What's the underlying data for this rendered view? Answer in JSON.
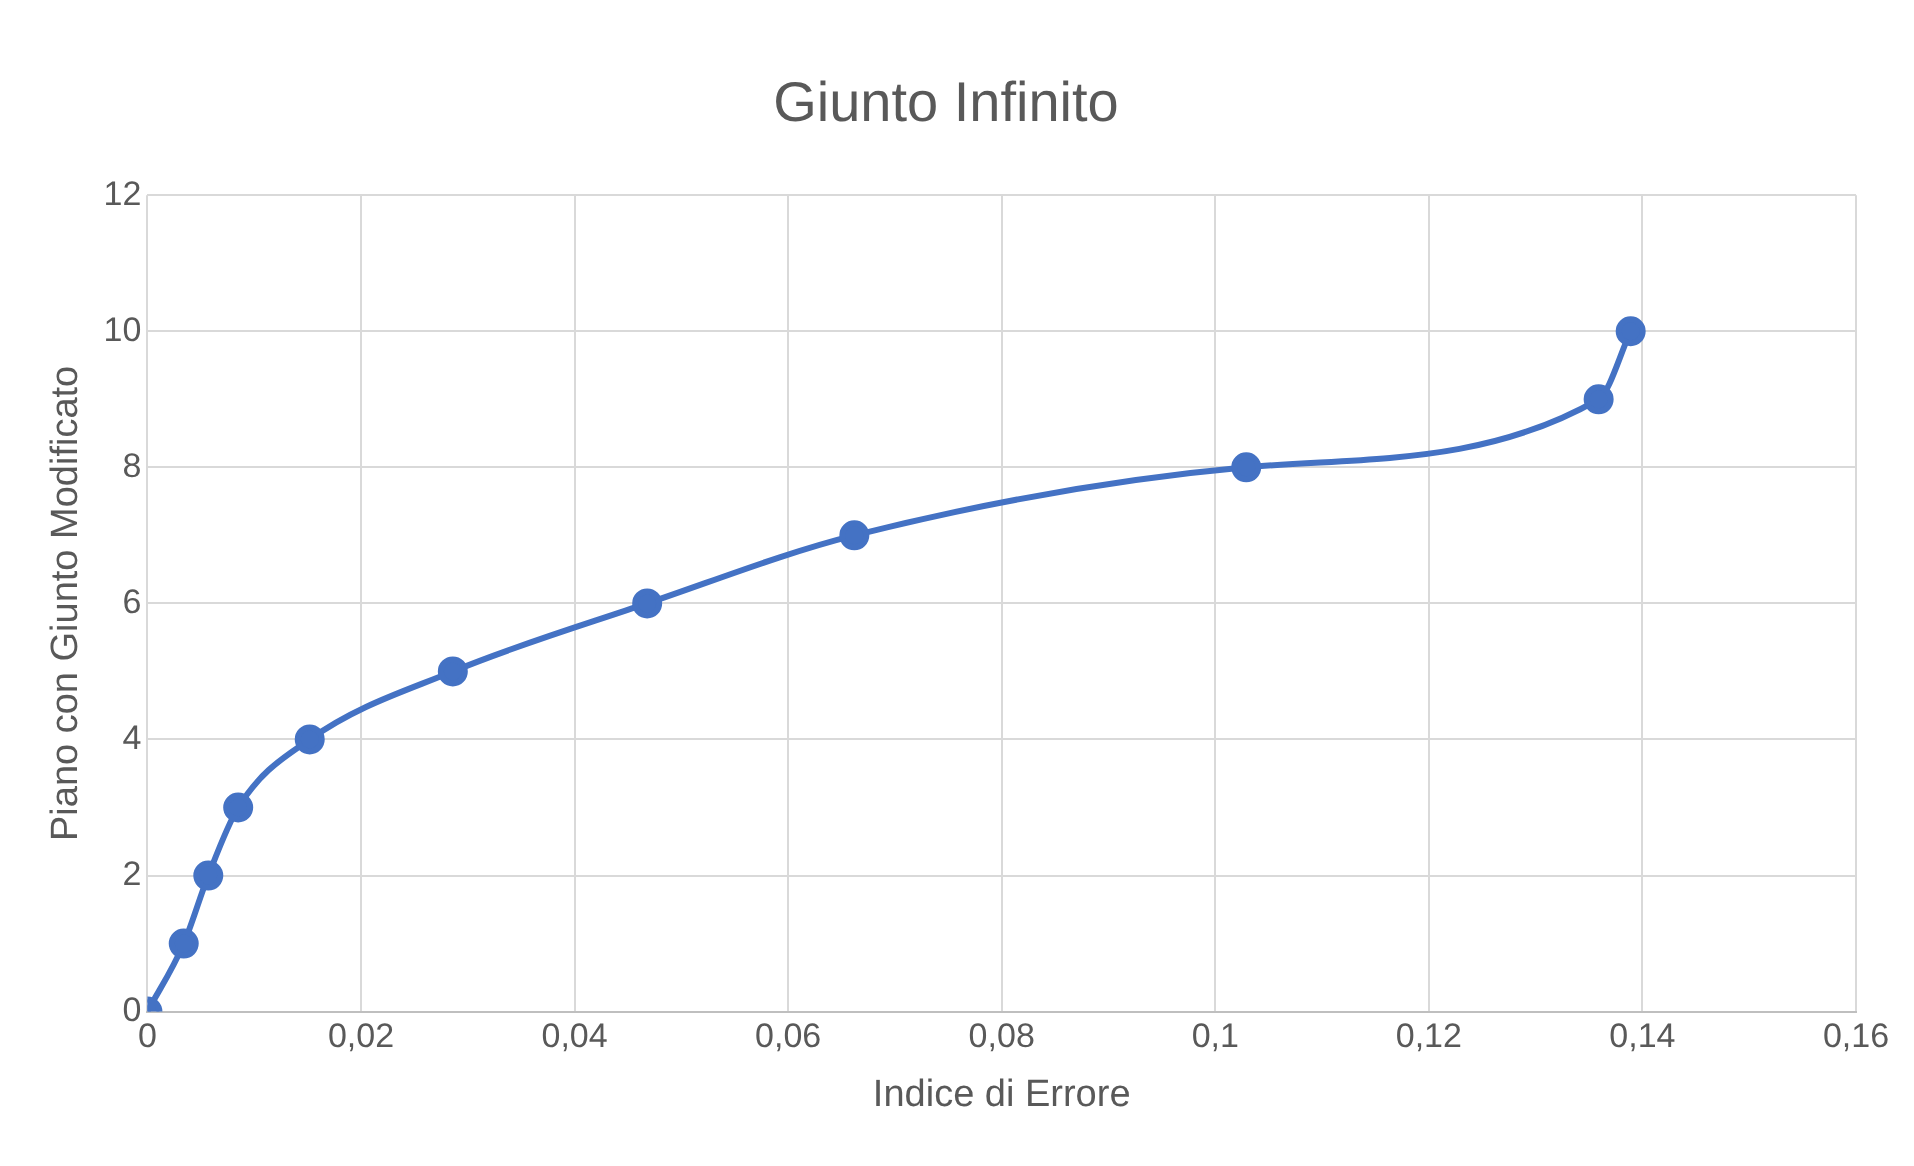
{
  "chart_data": {
    "type": "line",
    "title": "Giunto Infinito",
    "xlabel": "Indice di Errore",
    "ylabel": "Piano con Giunto Modificato",
    "x": [
      0,
      0.0034,
      0.0057,
      0.0085,
      0.0152,
      0.0286,
      0.0468,
      0.0662,
      0.1029,
      0.1359,
      0.1389
    ],
    "series": [
      {
        "color": "#4472c4",
        "values": [
          0,
          1,
          2,
          3,
          4,
          5,
          6,
          7,
          8,
          9,
          10
        ]
      }
    ],
    "xlim": [
      0,
      0.16
    ],
    "xticks": [
      0,
      {
        "value": 0.02,
        "label": "0,02"
      },
      {
        "value": 0.04,
        "label": "0,04"
      },
      {
        "value": 0.06,
        "label": "0,06"
      },
      {
        "value": 0.08,
        "label": "0,08"
      },
      {
        "value": 0.1,
        "label": "0,1"
      },
      {
        "value": 0.12,
        "label": "0,12"
      },
      {
        "value": 0.14,
        "label": "0,14"
      },
      {
        "value": 0.16,
        "label": "0,16"
      }
    ],
    "ylim": [
      0,
      12
    ],
    "yticks": [
      0,
      2,
      4,
      6,
      8,
      10,
      12
    ],
    "grid": true,
    "legend": false,
    "marker": "circle",
    "line_style": "solid"
  }
}
